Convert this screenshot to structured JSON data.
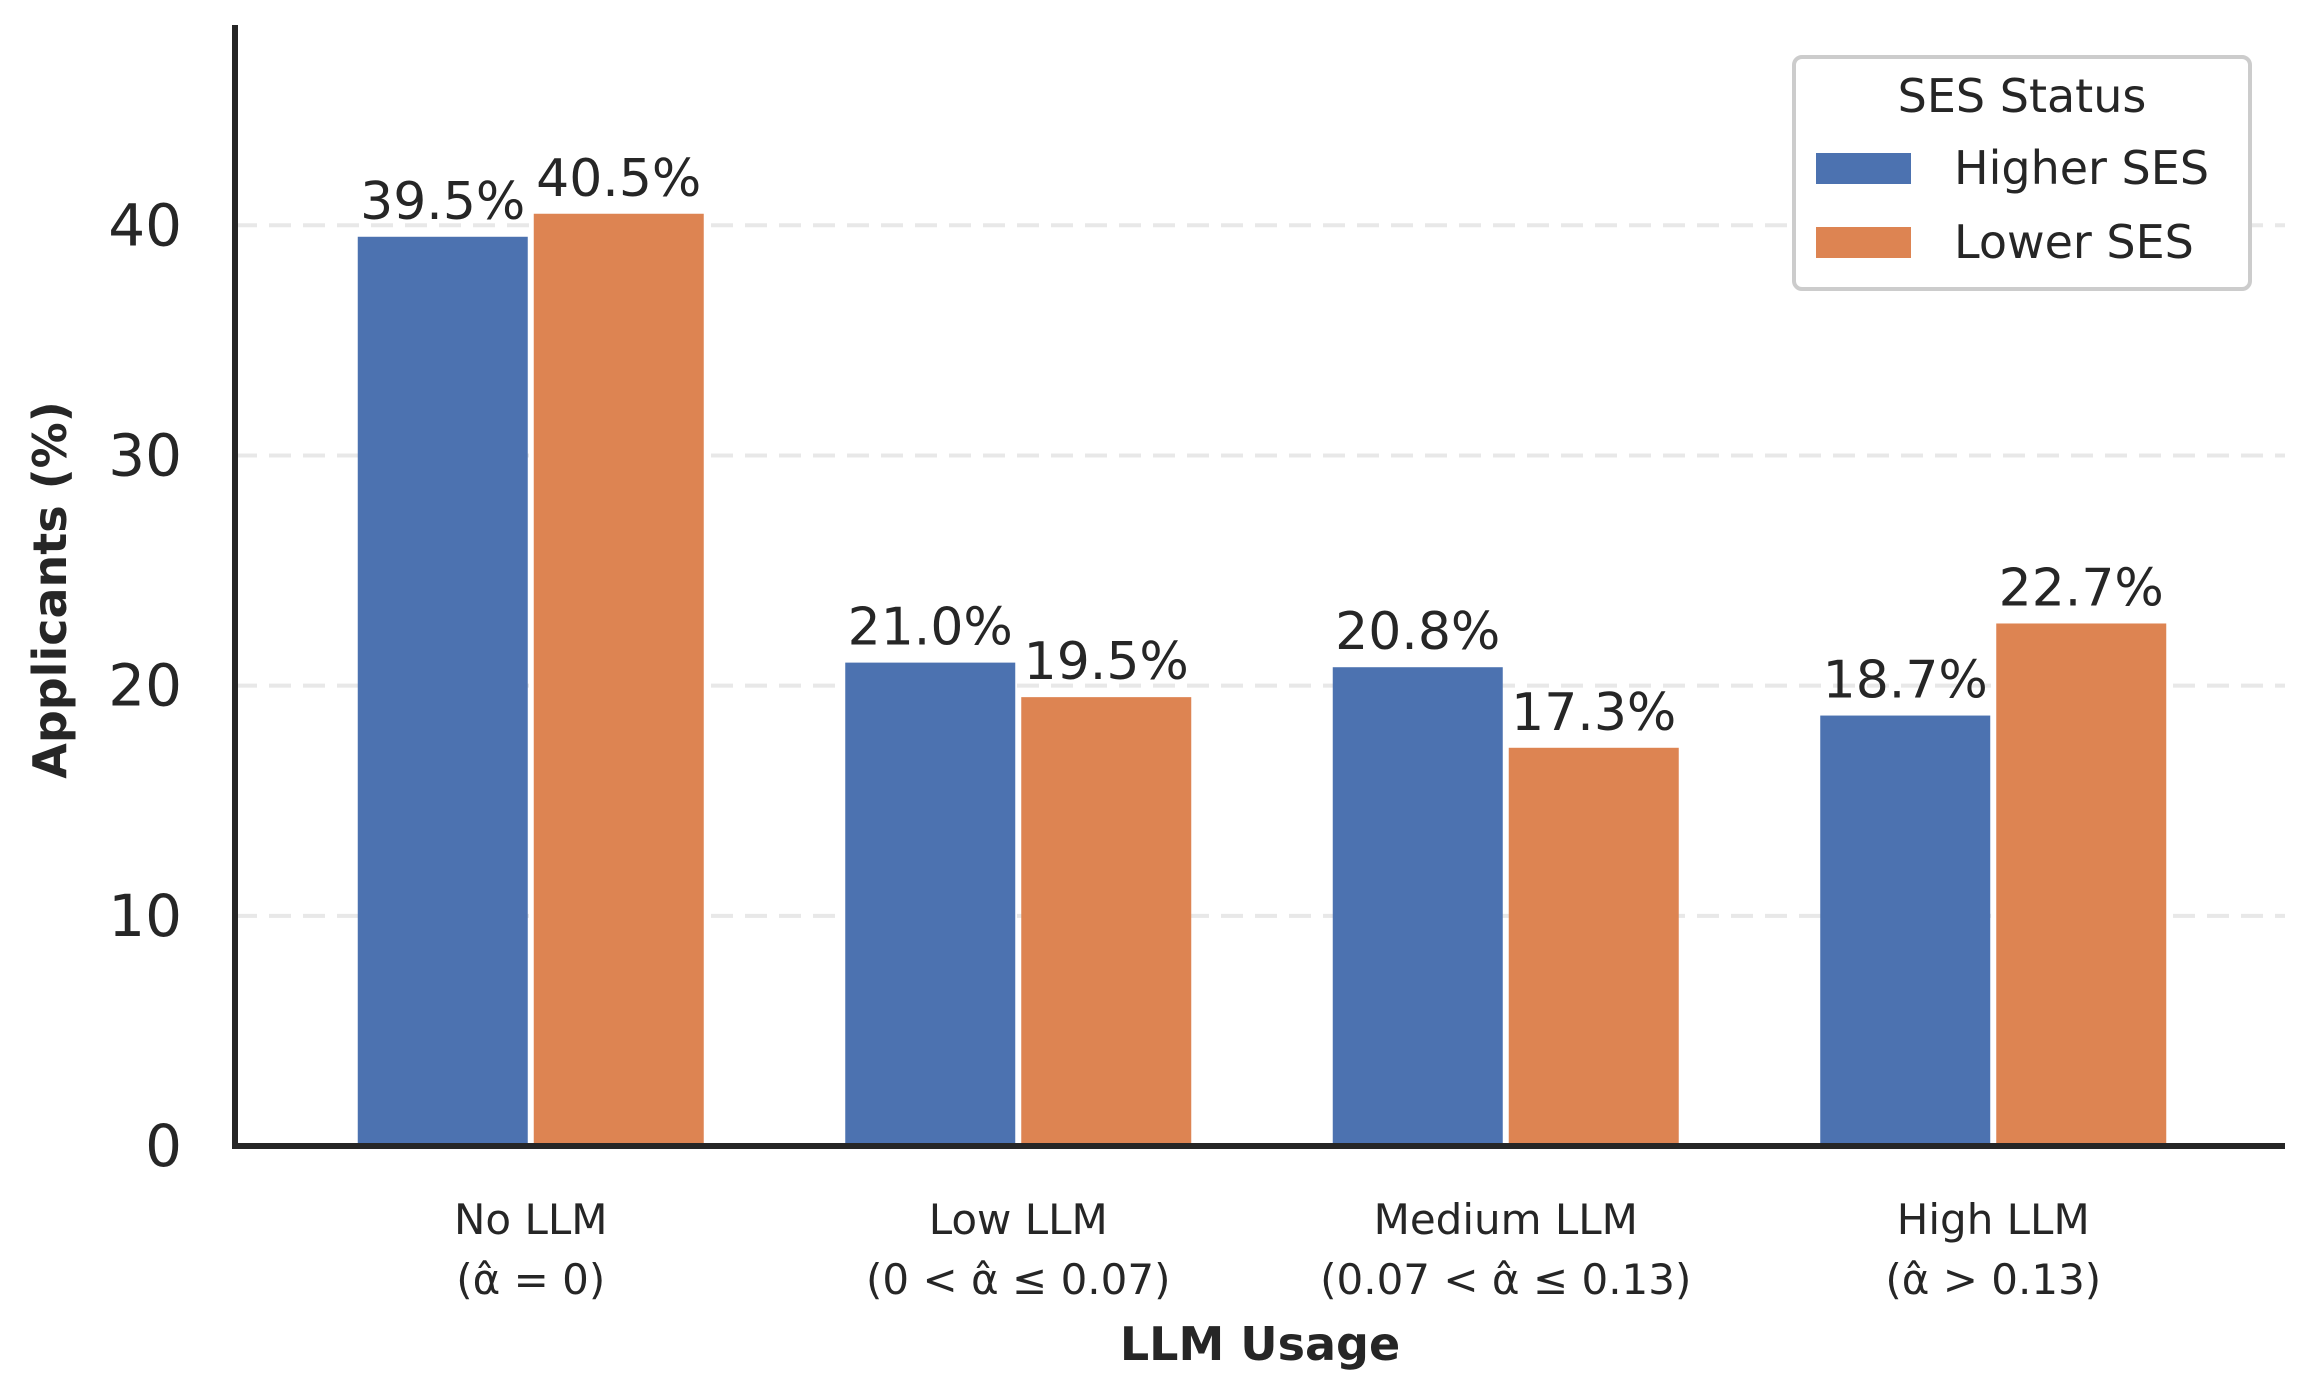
{
  "chart_data": {
    "type": "bar",
    "categories": [
      "No LLM",
      "Low LLM",
      "Medium LLM",
      "High LLM"
    ],
    "category_sublabels": [
      "(α̂ = 0)",
      "(0 < α̂ ≤ 0.07)",
      "(0.07 < α̂ ≤ 0.13)",
      "(α̂ > 0.13)"
    ],
    "series": [
      {
        "name": "Higher SES",
        "values": [
          39.5,
          21.0,
          20.8,
          18.7
        ],
        "color": "#4c72b0"
      },
      {
        "name": "Lower SES",
        "values": [
          40.5,
          19.5,
          17.3,
          22.7
        ],
        "color": "#dd8452"
      }
    ],
    "value_labels": [
      [
        "39.5%",
        "21.0%",
        "20.8%",
        "18.7%"
      ],
      [
        "40.5%",
        "19.5%",
        "17.3%",
        "22.7%"
      ]
    ],
    "xlabel": "LLM Usage",
    "ylabel": "Applicants (%)",
    "ylim": [
      0,
      48.7
    ],
    "yticks": [
      0,
      10,
      20,
      30,
      40
    ],
    "grid": "horizontal dashed",
    "legend": {
      "title": "SES Status",
      "position": "top-right"
    }
  }
}
